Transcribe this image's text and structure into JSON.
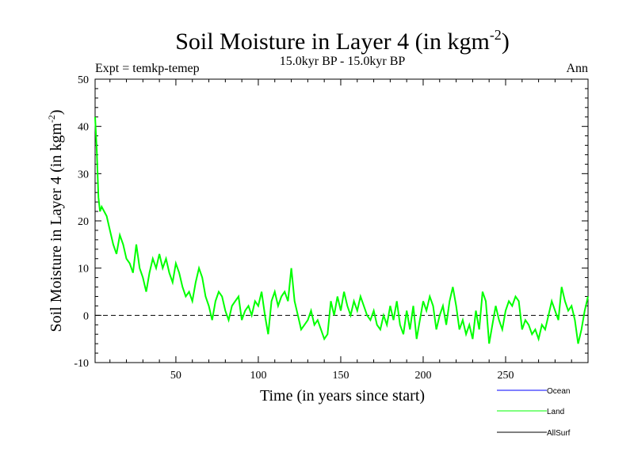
{
  "chart_data": {
    "type": "line",
    "title": "Soil Moisture in Layer 4 (in kgm",
    "title_sup": "-2",
    "title_close": ")",
    "subtitle": "15.0kyr BP - 15.0kyr BP",
    "left_label": "Expt = temkp-temep",
    "right_label": "Ann",
    "xlabel": "Time (in years since start)",
    "ylabel": "Soil Moisture in Layer 4 (in kgm",
    "ylabel_sup": "-2",
    "ylabel_close": ")",
    "xlim": [
      1,
      300
    ],
    "ylim": [
      -10,
      50
    ],
    "xticks": [
      50,
      100,
      150,
      200,
      250
    ],
    "yticks": [
      -10,
      0,
      10,
      20,
      30,
      40,
      50
    ],
    "reference_line": 0,
    "legend": [
      {
        "name": "Ocean",
        "color": "#0000ff"
      },
      {
        "name": "Land",
        "color": "#00ff00"
      },
      {
        "name": "AllSurf",
        "color": "#000000"
      }
    ],
    "series": [
      {
        "name": "Land",
        "color": "#00ff00",
        "points": [
          [
            1,
            42
          ],
          [
            2,
            35
          ],
          [
            3,
            25
          ],
          [
            4,
            22
          ],
          [
            5,
            23
          ],
          [
            8,
            21
          ],
          [
            10,
            18
          ],
          [
            12,
            15
          ],
          [
            14,
            13
          ],
          [
            16,
            17
          ],
          [
            18,
            15
          ],
          [
            20,
            12
          ],
          [
            22,
            11
          ],
          [
            24,
            9
          ],
          [
            26,
            15
          ],
          [
            28,
            10
          ],
          [
            30,
            8
          ],
          [
            32,
            5
          ],
          [
            34,
            9
          ],
          [
            36,
            12
          ],
          [
            38,
            10
          ],
          [
            40,
            13
          ],
          [
            42,
            10
          ],
          [
            44,
            12
          ],
          [
            46,
            9
          ],
          [
            48,
            7
          ],
          [
            50,
            11
          ],
          [
            52,
            9
          ],
          [
            54,
            6
          ],
          [
            56,
            4
          ],
          [
            58,
            5
          ],
          [
            60,
            3
          ],
          [
            62,
            7
          ],
          [
            64,
            10
          ],
          [
            66,
            8
          ],
          [
            68,
            4
          ],
          [
            70,
            2
          ],
          [
            72,
            -1
          ],
          [
            74,
            3
          ],
          [
            76,
            5
          ],
          [
            78,
            4
          ],
          [
            80,
            1
          ],
          [
            82,
            -1
          ],
          [
            84,
            2
          ],
          [
            86,
            3
          ],
          [
            88,
            4
          ],
          [
            90,
            -1
          ],
          [
            92,
            1
          ],
          [
            94,
            2
          ],
          [
            96,
            0
          ],
          [
            98,
            3
          ],
          [
            100,
            2
          ],
          [
            102,
            5
          ],
          [
            104,
            0
          ],
          [
            106,
            -4
          ],
          [
            108,
            3
          ],
          [
            110,
            5
          ],
          [
            112,
            2
          ],
          [
            114,
            4
          ],
          [
            116,
            5
          ],
          [
            118,
            3
          ],
          [
            120,
            10
          ],
          [
            122,
            3
          ],
          [
            124,
            0
          ],
          [
            126,
            -3
          ],
          [
            128,
            -2
          ],
          [
            130,
            -1
          ],
          [
            132,
            1
          ],
          [
            134,
            -2
          ],
          [
            136,
            -1
          ],
          [
            138,
            -3
          ],
          [
            140,
            -5
          ],
          [
            142,
            -4
          ],
          [
            144,
            3
          ],
          [
            146,
            0
          ],
          [
            148,
            4
          ],
          [
            150,
            1
          ],
          [
            152,
            5
          ],
          [
            154,
            2
          ],
          [
            156,
            0
          ],
          [
            158,
            3
          ],
          [
            160,
            1
          ],
          [
            162,
            4
          ],
          [
            164,
            2
          ],
          [
            166,
            0
          ],
          [
            168,
            -1
          ],
          [
            170,
            1
          ],
          [
            172,
            -2
          ],
          [
            174,
            -3
          ],
          [
            176,
            0
          ],
          [
            178,
            -2
          ],
          [
            180,
            2
          ],
          [
            182,
            -1
          ],
          [
            184,
            3
          ],
          [
            186,
            -2
          ],
          [
            188,
            -4
          ],
          [
            190,
            1
          ],
          [
            192,
            -3
          ],
          [
            194,
            2
          ],
          [
            196,
            -5
          ],
          [
            198,
            -1
          ],
          [
            200,
            3
          ],
          [
            202,
            1
          ],
          [
            204,
            4
          ],
          [
            206,
            2
          ],
          [
            208,
            -3
          ],
          [
            210,
            0
          ],
          [
            212,
            2
          ],
          [
            214,
            -2
          ],
          [
            216,
            3
          ],
          [
            218,
            6
          ],
          [
            220,
            2
          ],
          [
            222,
            -3
          ],
          [
            224,
            -1
          ],
          [
            226,
            -4
          ],
          [
            228,
            -2
          ],
          [
            230,
            -5
          ],
          [
            232,
            1
          ],
          [
            234,
            -3
          ],
          [
            236,
            5
          ],
          [
            238,
            3
          ],
          [
            240,
            -6
          ],
          [
            242,
            -2
          ],
          [
            244,
            2
          ],
          [
            246,
            -1
          ],
          [
            248,
            -3
          ],
          [
            250,
            1
          ],
          [
            252,
            3
          ],
          [
            254,
            2
          ],
          [
            256,
            4
          ],
          [
            258,
            3
          ],
          [
            260,
            -3
          ],
          [
            262,
            -1
          ],
          [
            264,
            -2
          ],
          [
            266,
            -4
          ],
          [
            268,
            -3
          ],
          [
            270,
            -5
          ],
          [
            272,
            -2
          ],
          [
            274,
            -3
          ],
          [
            276,
            0
          ],
          [
            278,
            3
          ],
          [
            280,
            1
          ],
          [
            282,
            -1
          ],
          [
            284,
            6
          ],
          [
            286,
            3
          ],
          [
            288,
            1
          ],
          [
            290,
            2
          ],
          [
            292,
            -1
          ],
          [
            294,
            -6
          ],
          [
            296,
            -3
          ],
          [
            298,
            1
          ],
          [
            300,
            4
          ]
        ]
      }
    ]
  }
}
